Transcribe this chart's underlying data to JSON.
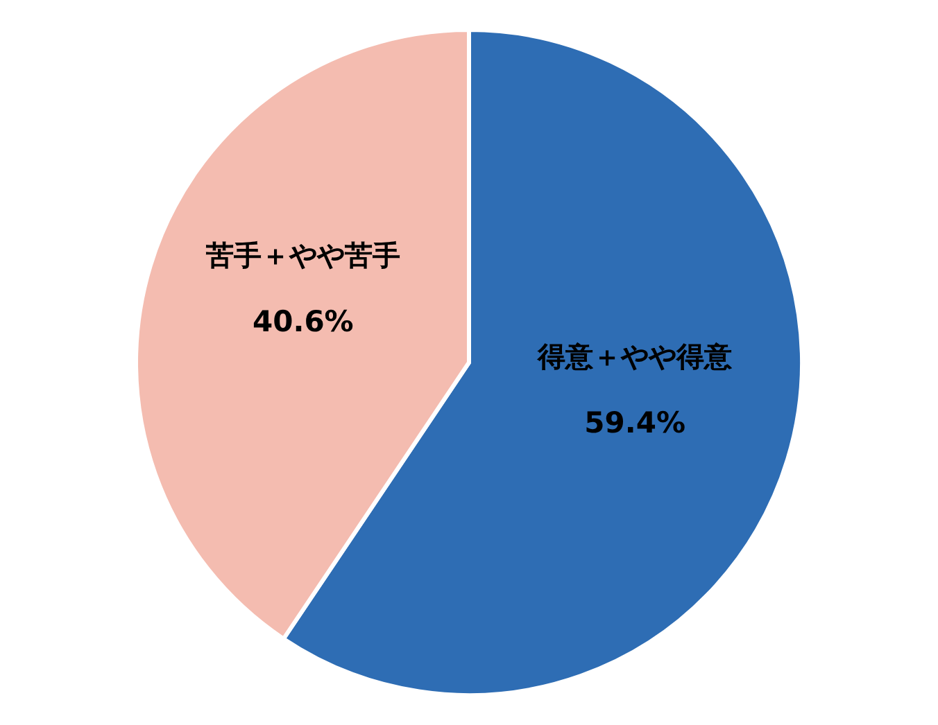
{
  "chart_data": {
    "type": "pie",
    "categories": [
      "得意＋やや得意",
      "苦手＋やや苦手"
    ],
    "values": [
      59.4,
      40.6
    ],
    "value_labels": [
      "59.4%",
      "40.6%"
    ],
    "colors": [
      "#2e6db4",
      "#f4bcb0"
    ]
  }
}
